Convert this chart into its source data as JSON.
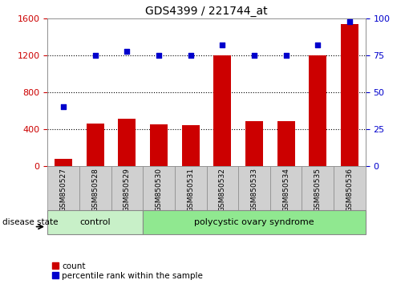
{
  "title": "GDS4399 / 221744_at",
  "samples": [
    "GSM850527",
    "GSM850528",
    "GSM850529",
    "GSM850530",
    "GSM850531",
    "GSM850532",
    "GSM850533",
    "GSM850534",
    "GSM850535",
    "GSM850536"
  ],
  "counts": [
    80,
    460,
    510,
    455,
    440,
    1200,
    490,
    490,
    1200,
    1540
  ],
  "percentiles": [
    40,
    75,
    78,
    75,
    75,
    82,
    75,
    75,
    82,
    98
  ],
  "left_ylim": [
    0,
    1600
  ],
  "right_ylim": [
    0,
    100
  ],
  "left_yticks": [
    0,
    400,
    800,
    1200,
    1600
  ],
  "right_yticks": [
    0,
    25,
    50,
    75,
    100
  ],
  "bar_color": "#cc0000",
  "dot_color": "#0000cc",
  "bar_width": 0.55,
  "grid_color": "#000000",
  "control_label": "control",
  "disease_label": "polycystic ovary syndrome",
  "disease_state_label": "disease state",
  "n_control": 3,
  "n_disease": 7,
  "bg_plot": "#ffffff",
  "bg_control": "#c8f0c8",
  "bg_disease": "#90e890",
  "tick_bg": "#d0d0d0",
  "legend_count": "count",
  "legend_percentile": "percentile rank within the sample",
  "left_tick_color": "#cc0000",
  "right_tick_color": "#0000cc",
  "grid_dotted_levels": [
    400,
    800,
    1200
  ]
}
